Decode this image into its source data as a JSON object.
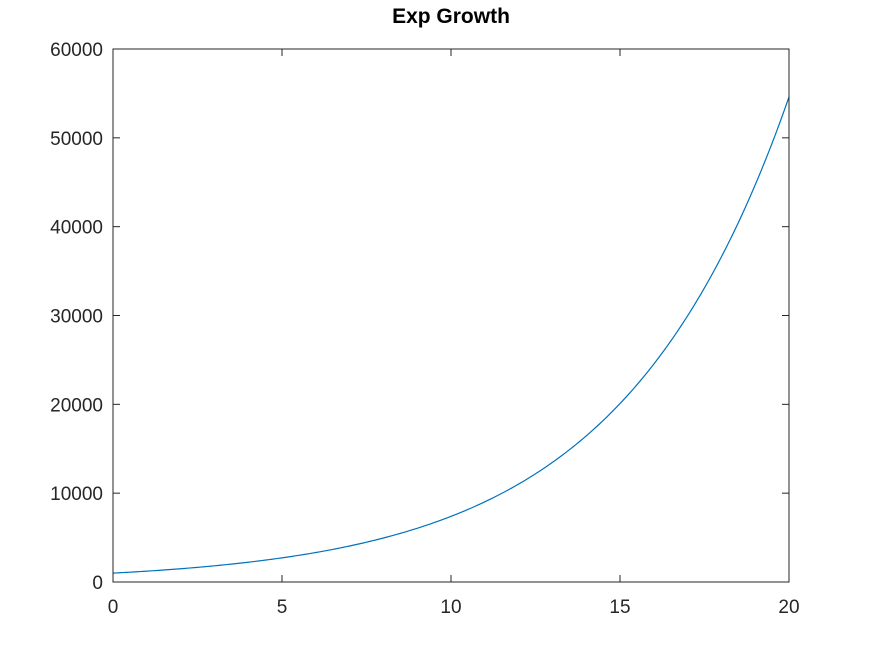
{
  "chart_data": {
    "type": "line",
    "title": "Exp Growth",
    "xlabel": "",
    "ylabel": "",
    "xlim": [
      0,
      20
    ],
    "ylim": [
      0,
      60000
    ],
    "x_ticks": [
      0,
      5,
      10,
      15,
      20
    ],
    "y_ticks": [
      0,
      10000,
      20000,
      30000,
      40000,
      50000,
      60000
    ],
    "x_tick_labels": [
      "0",
      "5",
      "10",
      "15",
      "20"
    ],
    "y_tick_labels": [
      "0",
      "10000",
      "20000",
      "30000",
      "40000",
      "50000",
      "60000"
    ],
    "grid": false,
    "box": true,
    "series": [
      {
        "color": "#0072BD",
        "x": [
          0,
          1,
          2,
          3,
          4,
          5,
          6,
          7,
          8,
          9,
          10,
          11,
          12,
          13,
          14,
          15,
          16,
          17,
          18,
          19,
          20
        ],
        "y": [
          1000,
          1221,
          1492,
          1822,
          2226,
          2718,
          3320,
          4055,
          4953,
          6050,
          7389,
          9025,
          11023,
          13464,
          16445,
          20086,
          24533,
          29964,
          36598,
          44701,
          54598
        ]
      }
    ]
  }
}
